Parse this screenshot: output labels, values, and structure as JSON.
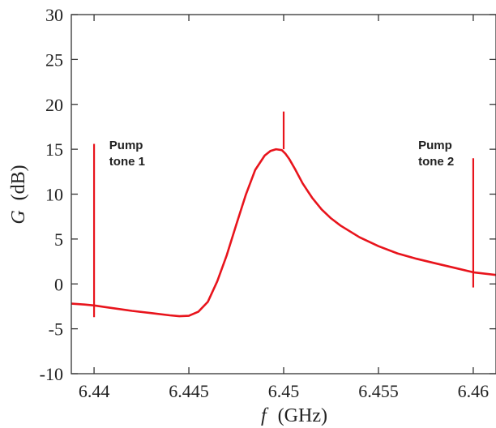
{
  "chart_data": {
    "type": "line",
    "x_unit": "GHz",
    "y_unit": "dB",
    "xlim": [
      6.4388,
      6.4612
    ],
    "ylim": [
      -10,
      30
    ],
    "x_ticks": [
      {
        "value": 6.44,
        "label": "6.44"
      },
      {
        "value": 6.445,
        "label": "6.445"
      },
      {
        "value": 6.45,
        "label": "6.45"
      },
      {
        "value": 6.455,
        "label": "6.455"
      },
      {
        "value": 6.46,
        "label": "6.46"
      }
    ],
    "y_ticks": [
      {
        "value": -10,
        "label": "-10"
      },
      {
        "value": -5,
        "label": "-5"
      },
      {
        "value": 0,
        "label": "0"
      },
      {
        "value": 5,
        "label": "5"
      },
      {
        "value": 10,
        "label": "10"
      },
      {
        "value": 15,
        "label": "15"
      },
      {
        "value": 20,
        "label": "20"
      },
      {
        "value": 25,
        "label": "25"
      },
      {
        "value": 30,
        "label": "30"
      }
    ],
    "x_label_symbol": "f",
    "x_label_unit": "(GHz)",
    "y_label_symbol": "G",
    "y_label_unit": "(dB)",
    "grid": false,
    "series_color": "#e8141c",
    "series": [
      {
        "x": [
          6.4388,
          6.4395,
          6.44,
          6.441,
          6.442,
          6.443,
          6.444,
          6.4445,
          6.445,
          6.4455,
          6.446,
          6.4465,
          6.447,
          6.4475,
          6.448,
          6.4485,
          6.449,
          6.4493,
          6.4496,
          6.4499,
          6.4501,
          6.4503,
          6.4506,
          6.451,
          6.4515,
          6.452,
          6.4525,
          6.453,
          6.454,
          6.455,
          6.456,
          6.457,
          6.458,
          6.459,
          6.46,
          6.4612
        ],
        "y": [
          -2.2,
          -2.3,
          -2.4,
          -2.7,
          -3.0,
          -3.25,
          -3.5,
          -3.6,
          -3.55,
          -3.1,
          -2.0,
          0.3,
          3.2,
          6.6,
          9.9,
          12.7,
          14.3,
          14.8,
          15.0,
          14.9,
          14.5,
          13.9,
          12.8,
          11.2,
          9.6,
          8.3,
          7.3,
          6.5,
          5.2,
          4.2,
          3.4,
          2.8,
          2.3,
          1.8,
          1.3,
          1.0
        ]
      }
    ],
    "spikes": [
      {
        "x": 6.44,
        "y_min": -3.7,
        "y_max": 15.6
      },
      {
        "x": 6.45,
        "y_min": 15.0,
        "y_max": 19.2
      },
      {
        "x": 6.46,
        "y_min": -0.4,
        "y_max": 14.0
      }
    ],
    "annotations": [
      {
        "lines": [
          "Pump",
          "tone 1"
        ],
        "x": 6.4408,
        "y": 15.0
      },
      {
        "lines": [
          "Pump",
          "tone 2"
        ],
        "x": 6.4571,
        "y": 15.0
      }
    ]
  }
}
